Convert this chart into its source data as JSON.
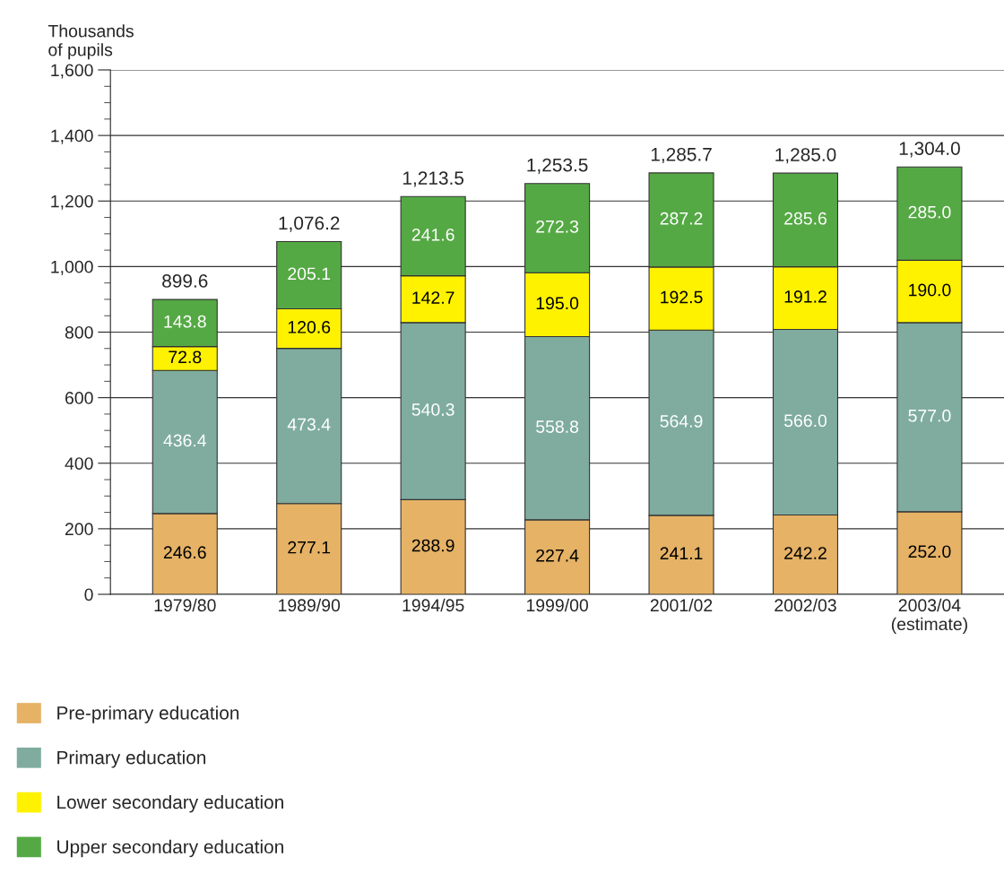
{
  "chart_data": {
    "type": "bar",
    "stacked": true,
    "ylabel": "Thousands\nof pupils",
    "categories": [
      "1979/80",
      "1989/90",
      "1994/95",
      "1999/00",
      "2001/02",
      "2002/03",
      "2003/04\n(estimate)"
    ],
    "series": [
      {
        "name": "Pre-primary education",
        "color": "#e5b266",
        "values": [
          246.6,
          277.1,
          288.9,
          227.4,
          241.1,
          242.2,
          252.0
        ],
        "value_labels": [
          "246.6",
          "277.1",
          "288.9",
          "227.4",
          "241.1",
          "242.2",
          "252.0"
        ]
      },
      {
        "name": "Primary education",
        "color": "#7fac9f",
        "values": [
          436.4,
          473.4,
          540.3,
          558.8,
          564.9,
          566.0,
          577.0
        ],
        "value_labels": [
          "436.4",
          "473.4",
          "540.3",
          "558.8",
          "564.9",
          "566.0",
          "577.0"
        ]
      },
      {
        "name": "Lower secondary education",
        "color": "#fff200",
        "values": [
          72.8,
          120.6,
          142.7,
          195.0,
          192.5,
          191.2,
          190.0
        ],
        "value_labels": [
          "72.8",
          "120.6",
          "142.7",
          "195.0",
          "192.5",
          "191.2",
          "190.0"
        ]
      },
      {
        "name": "Upper secondary education",
        "color": "#55a944",
        "values": [
          143.8,
          205.1,
          241.6,
          272.3,
          287.2,
          285.6,
          285.0
        ],
        "value_labels": [
          "143.8",
          "205.1",
          "241.6",
          "272.3",
          "287.2",
          "285.6",
          "285.0"
        ]
      }
    ],
    "totals": [
      "899.6",
      "1,076.2",
      "1,213.5",
      "1,253.5",
      "1,285.7",
      "1,285.0",
      "1,304.0"
    ],
    "ylim": [
      0,
      1600
    ],
    "yticks": [
      {
        "value": 0,
        "label": "0"
      },
      {
        "value": 200,
        "label": "200"
      },
      {
        "value": 400,
        "label": "400"
      },
      {
        "value": 600,
        "label": "600"
      },
      {
        "value": 800,
        "label": "800"
      },
      {
        "value": 1000,
        "label": "1,000"
      },
      {
        "value": 1200,
        "label": "1,200"
      },
      {
        "value": 1400,
        "label": "1,400"
      },
      {
        "value": 1600,
        "label": "1,600"
      }
    ],
    "grid": "y",
    "legend": "bottom left"
  }
}
